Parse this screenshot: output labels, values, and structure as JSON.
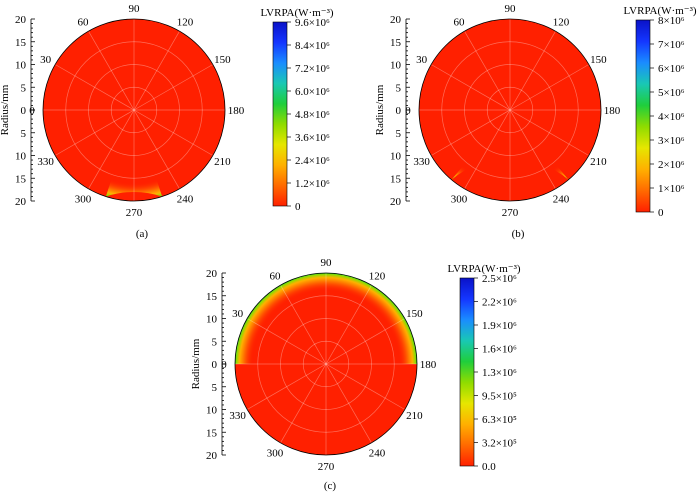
{
  "chart_data": [
    {
      "type": "polar-contour",
      "panel_label": "(a)",
      "ylabel": "Radius/mm",
      "radial_ticks_top": [
        "20",
        "15",
        "10",
        "5",
        "0"
      ],
      "radial_ticks_bottom": [
        "5",
        "10",
        "15",
        "20"
      ],
      "radius_range": [
        0,
        20
      ],
      "angle_labels": [
        "0",
        "30",
        "60",
        "90",
        "120",
        "150",
        "180",
        "210",
        "240",
        "270",
        "300",
        "330"
      ],
      "colorbar": {
        "title": "LVRPA(W·m⁻³)",
        "ticks": [
          "0",
          "1.2×10⁶",
          "2.4×10⁶",
          "3.6×10⁶",
          "4.8×10⁶",
          "6.0×10⁶",
          "7.2×10⁶",
          "8.4×10⁶",
          "9.6×10⁶"
        ],
        "range": [
          0,
          9600000
        ]
      },
      "edge_band": {
        "start_angle_deg": 252,
        "end_angle_deg": 288
      },
      "colors": [
        "#ff2000",
        "#ff6a00",
        "#ffb000",
        "#e6e600",
        "#8fdc00",
        "#1fce3c",
        "#19c8b4",
        "#1a8cff",
        "#1436ff",
        "#0a12c8"
      ]
    },
    {
      "type": "polar-contour",
      "panel_label": "(b)",
      "ylabel": "Radius/mm",
      "radial_ticks_top": [
        "20",
        "15",
        "10",
        "5",
        "0"
      ],
      "radial_ticks_bottom": [
        "5",
        "10",
        "15",
        "20"
      ],
      "radius_range": [
        0,
        20
      ],
      "angle_labels": [
        "0",
        "30",
        "60",
        "90",
        "120",
        "150",
        "180",
        "210",
        "240",
        "270",
        "300",
        "330"
      ],
      "colorbar": {
        "title": "LVRPA(W·m⁻³)",
        "ticks": [
          "0",
          "1×10⁶",
          "2×10⁶",
          "3×10⁶",
          "4×10⁶",
          "5×10⁶",
          "6×10⁶",
          "7×10⁶",
          "8×10⁶"
        ],
        "range": [
          0,
          8000000
        ]
      },
      "edge_band": {
        "start_angle_deg": 230,
        "end_angle_deg": 310
      },
      "colors": [
        "#ff2000",
        "#ff6a00",
        "#ffb000",
        "#e6e600",
        "#8fdc00",
        "#1fce3c",
        "#19c8b4",
        "#1a8cff",
        "#1436ff",
        "#0a12c8"
      ]
    },
    {
      "type": "polar-contour",
      "panel_label": "(c)",
      "ylabel": "Radius/mm",
      "radial_ticks_top": [
        "20",
        "15",
        "10",
        "5",
        "0"
      ],
      "radial_ticks_bottom": [
        "5",
        "10",
        "15",
        "20"
      ],
      "radius_range": [
        0,
        20
      ],
      "angle_labels": [
        "0",
        "30",
        "60",
        "90",
        "120",
        "150",
        "180",
        "210",
        "240",
        "270",
        "300",
        "330"
      ],
      "colorbar": {
        "title": "LVRPA(W·m⁻³)",
        "ticks": [
          "0.0",
          "3.2×10⁵",
          "6.3×10⁵",
          "9.5×10⁵",
          "1.3×10⁶",
          "1.6×10⁶",
          "1.9×10⁶",
          "2.2×10⁶",
          "2.5×10⁶"
        ],
        "range": [
          0,
          2500000
        ]
      },
      "edge_band": {
        "start_angle_deg": 180,
        "end_angle_deg": 360
      },
      "colors": [
        "#ff2000",
        "#ff6a00",
        "#ffb000",
        "#e6e600",
        "#8fdc00",
        "#1fce3c",
        "#19c8b4",
        "#1a8cff",
        "#1436ff",
        "#0a12c8"
      ]
    }
  ]
}
